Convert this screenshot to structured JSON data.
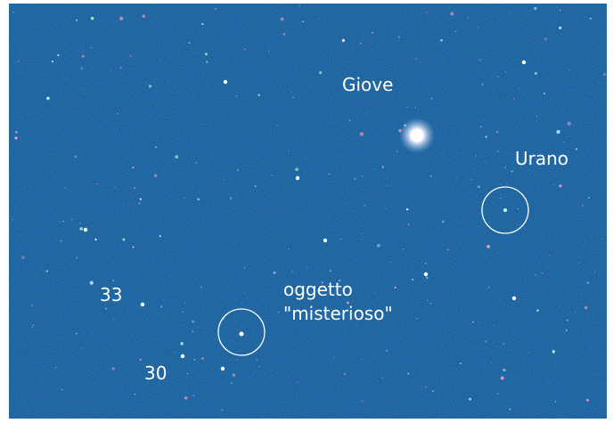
{
  "annotations": {
    "jupiter": "Giove",
    "uranus": "Urano",
    "object_line1": "oggetto",
    "object_line2": "\"misterioso\"",
    "star_33": "33",
    "star_30": "30"
  }
}
